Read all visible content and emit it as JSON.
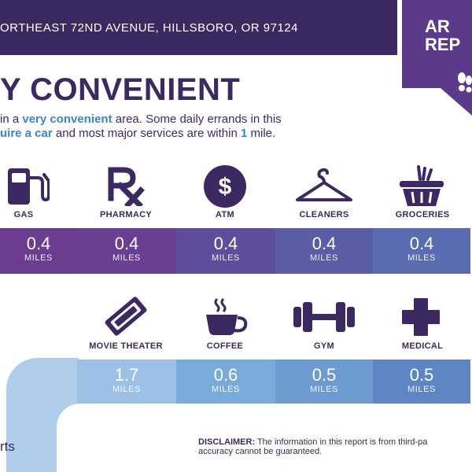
{
  "header": {
    "address": "ORTHEAST 72ND AVENUE, HILLSBORO, OR 97124",
    "ribbon_text": "AR\nREP",
    "colors": {
      "bar": "#3d2962",
      "ribbon": "#5b3a8c"
    }
  },
  "headline": "Y CONVENIENT",
  "description": {
    "line1_a": "in a ",
    "line1_hl": "very convenient",
    "line1_b": " area. Some daily errands in this",
    "line2_hl": "uire a car",
    "line2_b": " and most major services are within ",
    "line2_num": "1",
    "line2_c": " mile."
  },
  "services_row1": [
    {
      "label": "GAS",
      "value": "0.4",
      "unit": "MILES",
      "icon": "gas-pump-icon",
      "color": "#6a3d8f"
    },
    {
      "label": "PHARMACY",
      "value": "0.4",
      "unit": "MILES",
      "icon": "rx-icon",
      "color": "#6a3f93"
    },
    {
      "label": "ATM",
      "value": "0.4",
      "unit": "MILES",
      "icon": "dollar-icon",
      "color": "#5e4c9c"
    },
    {
      "label": "CLEANERS",
      "value": "0.4",
      "unit": "MILES",
      "icon": "hanger-icon",
      "color": "#5a5ca6"
    },
    {
      "label": "GROCERIES",
      "value": "0.4",
      "unit": "MILES",
      "icon": "basket-icon",
      "color": "#5a6cb1"
    }
  ],
  "services_row2": [
    {
      "label": "MOVIE THEATER",
      "value": "1.7",
      "unit": "MILES",
      "icon": "ticket-icon",
      "color": "#9dc0e6"
    },
    {
      "label": "COFFEE",
      "value": "0.6",
      "unit": "MILES",
      "icon": "coffee-icon",
      "color": "#7aaad9"
    },
    {
      "label": "GYM",
      "value": "0.5",
      "unit": "MILES",
      "icon": "dumbbell-icon",
      "color": "#6d9ad1"
    },
    {
      "label": "MEDICAL",
      "value": "0.5",
      "unit": "MILES",
      "icon": "medical-cross-icon",
      "color": "#5f86c4"
    }
  ],
  "left_text": "rts",
  "disclaimer": {
    "label": "DISCLAIMER:",
    "line1": " The information in this report is from third-pa",
    "line2": "accuracy cannot be guaranteed."
  }
}
